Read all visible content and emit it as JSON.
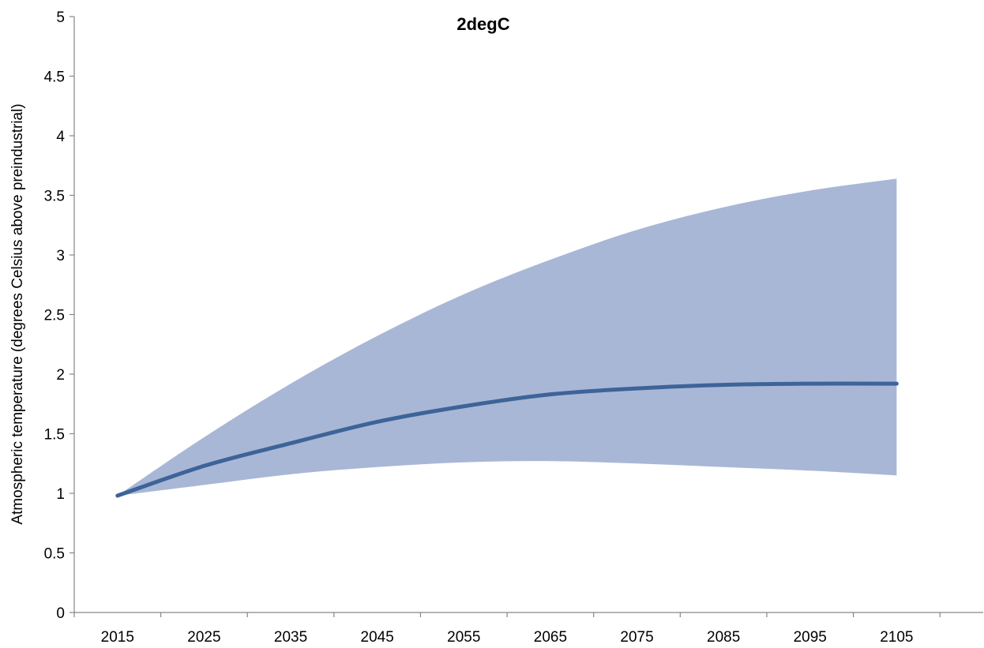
{
  "chart_data": {
    "type": "area",
    "title": "2degC",
    "xlabel": "",
    "ylabel": "Atmospheric temperature (degrees Celsius above preindustrial)",
    "xlim": [
      2010,
      2115
    ],
    "ylim": [
      0,
      5
    ],
    "x_ticks": [
      2015,
      2025,
      2035,
      2045,
      2055,
      2065,
      2075,
      2085,
      2095,
      2105
    ],
    "y_ticks": [
      "0",
      "0.5",
      "1",
      "1.5",
      "2",
      "2.5",
      "3",
      "3.5",
      "4",
      "4.5",
      "5"
    ],
    "grid": false,
    "legend": "none",
    "x": [
      2015,
      2025,
      2035,
      2045,
      2055,
      2065,
      2075,
      2085,
      2095,
      2105
    ],
    "series": [
      {
        "kind": "line",
        "color": "#3d6498",
        "values": [
          0.98,
          1.23,
          1.42,
          1.6,
          1.73,
          1.83,
          1.88,
          1.91,
          1.92,
          1.92
        ]
      },
      {
        "kind": "band-upper",
        "color": "#a9b7d6",
        "values": [
          0.98,
          1.47,
          1.92,
          2.32,
          2.67,
          2.96,
          3.21,
          3.4,
          3.54,
          3.64
        ]
      },
      {
        "kind": "band-lower",
        "color": "#a9b7d6",
        "values": [
          0.98,
          1.07,
          1.16,
          1.22,
          1.26,
          1.27,
          1.25,
          1.22,
          1.19,
          1.15
        ]
      }
    ]
  }
}
